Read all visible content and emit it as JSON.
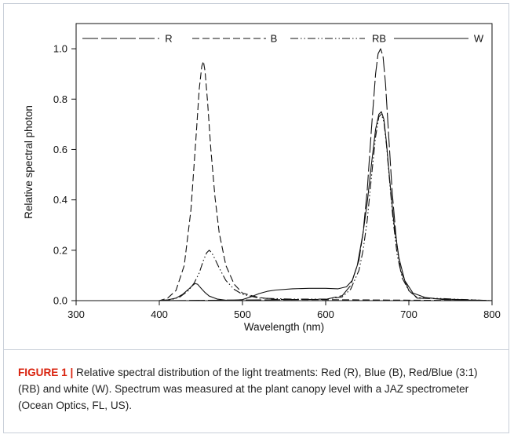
{
  "caption": {
    "label": "FIGURE 1 |",
    "text": " Relative spectral distribution of the light treatments: Red (R), Blue (B), Red/Blue (3:1) (RB) and white (W). Spectrum was measured at the plant canopy level with a JAZ spectrometer (Ocean Optics, FL, US)."
  },
  "chart_data": {
    "type": "line",
    "xlabel": "Wavelength (nm)",
    "ylabel": "Relative spectral photon",
    "xlim": [
      300,
      800
    ],
    "ylim": [
      0,
      1.1
    ],
    "xticks": [
      300,
      400,
      500,
      600,
      700,
      800
    ],
    "yticks": [
      0.0,
      0.2,
      0.4,
      0.6,
      0.8,
      1.0
    ],
    "xtick_labels": [
      "300",
      "400",
      "500",
      "600",
      "700",
      "800"
    ],
    "ytick_labels": [
      "0.0",
      "0.2",
      "0.4",
      "0.6",
      "0.8",
      "1.0"
    ],
    "grid": false,
    "legend_position": "top",
    "series": [
      {
        "name": "R",
        "style": "long-dash",
        "x": [
          300,
          400,
          600,
          620,
          630,
          640,
          645,
          650,
          655,
          660,
          663,
          666,
          669,
          672,
          676,
          680,
          685,
          690,
          700,
          710,
          800
        ],
        "y": [
          0,
          0,
          0.005,
          0.02,
          0.06,
          0.16,
          0.27,
          0.44,
          0.68,
          0.9,
          0.98,
          1.0,
          0.97,
          0.86,
          0.64,
          0.43,
          0.24,
          0.12,
          0.04,
          0.01,
          0
        ]
      },
      {
        "name": "B",
        "style": "short-dash",
        "x": [
          300,
          400,
          410,
          420,
          430,
          438,
          444,
          448,
          451,
          453,
          455,
          458,
          462,
          467,
          472,
          480,
          490,
          500,
          520,
          540,
          800
        ],
        "y": [
          0,
          0,
          0.01,
          0.04,
          0.14,
          0.36,
          0.64,
          0.84,
          0.93,
          0.95,
          0.91,
          0.79,
          0.6,
          0.41,
          0.27,
          0.14,
          0.065,
          0.03,
          0.012,
          0.005,
          0
        ]
      },
      {
        "name": "RB",
        "style": "dash-dot-dot",
        "x": [
          300,
          400,
          415,
          425,
          435,
          442,
          448,
          453,
          457,
          460,
          463,
          467,
          472,
          480,
          490,
          500,
          520,
          560,
          600,
          620,
          630,
          640,
          645,
          650,
          655,
          660,
          664,
          667,
          670,
          673,
          677,
          681,
          686,
          692,
          700,
          710,
          800
        ],
        "y": [
          0,
          0,
          0.004,
          0.015,
          0.04,
          0.07,
          0.11,
          0.16,
          0.19,
          0.2,
          0.19,
          0.165,
          0.13,
          0.08,
          0.045,
          0.025,
          0.01,
          0.006,
          0.006,
          0.015,
          0.045,
          0.12,
          0.2,
          0.32,
          0.49,
          0.65,
          0.73,
          0.74,
          0.71,
          0.62,
          0.47,
          0.32,
          0.18,
          0.09,
          0.04,
          0.012,
          0
        ]
      },
      {
        "name": "W",
        "style": "solid",
        "x": [
          300,
          400,
          410,
          420,
          428,
          435,
          440,
          443,
          446,
          450,
          455,
          460,
          470,
          480,
          490,
          500,
          510,
          520,
          530,
          540,
          560,
          580,
          600,
          615,
          625,
          632,
          638,
          645,
          650,
          655,
          660,
          664,
          667,
          670,
          673,
          677,
          682,
          688,
          695,
          705,
          720,
          740,
          800
        ],
        "y": [
          0,
          0,
          0.003,
          0.01,
          0.025,
          0.045,
          0.06,
          0.068,
          0.065,
          0.05,
          0.032,
          0.018,
          0.006,
          0.002,
          0.002,
          0.004,
          0.015,
          0.028,
          0.037,
          0.042,
          0.047,
          0.049,
          0.049,
          0.047,
          0.055,
          0.08,
          0.14,
          0.27,
          0.39,
          0.54,
          0.68,
          0.74,
          0.75,
          0.72,
          0.63,
          0.48,
          0.31,
          0.17,
          0.08,
          0.03,
          0.012,
          0.005,
          0
        ]
      }
    ]
  }
}
